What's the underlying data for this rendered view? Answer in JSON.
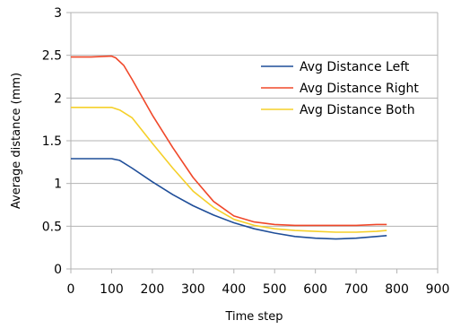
{
  "chart_data": {
    "type": "line",
    "title": "",
    "xlabel": "Time step",
    "ylabel": "Average distance (mm)",
    "xlim": [
      0,
      900
    ],
    "ylim": [
      0,
      3
    ],
    "xticks": [
      "0",
      "100",
      "200",
      "300",
      "400",
      "500",
      "600",
      "700",
      "800",
      "900"
    ],
    "yticks": [
      "0",
      "0.5",
      "1",
      "1.5",
      "2",
      "2.5",
      "3"
    ],
    "grid": "horizontal",
    "legend_position": "top-right",
    "series": [
      {
        "name": "Avg Distance Left",
        "color": "#1f4e99",
        "x": [
          0,
          50,
          100,
          120,
          150,
          200,
          250,
          300,
          350,
          400,
          450,
          500,
          550,
          600,
          650,
          700,
          750,
          775
        ],
        "y": [
          1.29,
          1.29,
          1.29,
          1.27,
          1.18,
          1.02,
          0.87,
          0.74,
          0.63,
          0.54,
          0.47,
          0.42,
          0.38,
          0.36,
          0.35,
          0.36,
          0.38,
          0.39
        ]
      },
      {
        "name": "Avg Distance Right",
        "color": "#f0482a",
        "x": [
          0,
          50,
          100,
          110,
          130,
          150,
          200,
          250,
          300,
          350,
          400,
          450,
          500,
          550,
          600,
          650,
          700,
          750,
          775
        ],
        "y": [
          2.48,
          2.48,
          2.49,
          2.47,
          2.38,
          2.22,
          1.8,
          1.42,
          1.07,
          0.79,
          0.62,
          0.55,
          0.52,
          0.51,
          0.51,
          0.51,
          0.51,
          0.52,
          0.52
        ]
      },
      {
        "name": "Avg Distance Both",
        "color": "#f5d02a",
        "x": [
          0,
          50,
          100,
          120,
          150,
          200,
          250,
          300,
          350,
          400,
          450,
          500,
          550,
          600,
          650,
          700,
          750,
          775
        ],
        "y": [
          1.89,
          1.89,
          1.89,
          1.86,
          1.77,
          1.47,
          1.18,
          0.91,
          0.72,
          0.58,
          0.51,
          0.47,
          0.45,
          0.44,
          0.43,
          0.43,
          0.44,
          0.45
        ]
      }
    ]
  }
}
